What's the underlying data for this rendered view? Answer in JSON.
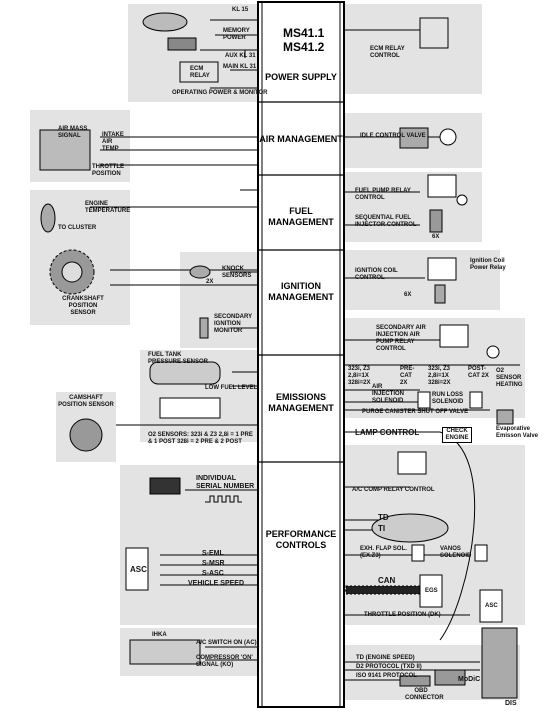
{
  "ecm": {
    "title_line1": "MS41.1",
    "title_line2": "MS41.2"
  },
  "sections": {
    "power_supply": "POWER SUPPLY",
    "air_management": "AIR MANAGEMENT",
    "fuel_management": "FUEL MANAGEMENT",
    "ignition_management": "IGNITION MANAGEMENT",
    "emissions_management": "EMISSIONS MANAGEMENT",
    "performance_controls": "PERFORMANCE CONTROLS"
  },
  "power": {
    "kl15": "KL 15",
    "memory_power": "MEMORY POWER",
    "ecm_relay": "ECM RELAY",
    "aux_kl31": "AUX KL 31",
    "main_kl31": "MAIN KL 31",
    "operating_power": "OPERATING POWER & MONITOR",
    "ecm_relay_control": "ECM RELAY CONTROL"
  },
  "air": {
    "air_mass_signal": "AIR MASS SIGNAL",
    "intake_air_temp": "INTAKE AIR TEMP",
    "throttle_position": "THROTTLE POSITION",
    "idle_control_valve": "IDLE CONTROL VALVE"
  },
  "fuel": {
    "engine_temperature": "ENGINE TEMPERATURE",
    "to_cluster": "TO CLUSTER",
    "fuel_pump_relay_control": "FUEL PUMP RELAY CONTROL",
    "sequential_fuel_injector_control": "SEQUENTIAL FUEL INJECTOR CONTROL",
    "injector_count": "6X"
  },
  "ignition": {
    "crankshaft_position_sensor": "CRANKSHAFT POSITION SENSOR",
    "knock_sensors": "KNOCK SENSORS",
    "knock_count": "2X",
    "secondary_ignition_monitor": "SECONDARY IGNITION MONITOR",
    "ignition_coil_control": "IGNITION COIL CONTROL",
    "coil_count": "6X",
    "ignition_coil_power_relay": "Ignition Coil Power Relay"
  },
  "emissions": {
    "secondary_air_relay_control": "SECONDARY AIR INJECTION AIR PUMP RELAY CONTROL",
    "fuel_tank_pressure_sensor": "FUEL TANK PRESSURE SENSOR",
    "low_fuel_level": "LOW FUEL LEVEL",
    "camshaft_position_sensor": "CAMSHAFT POSITION SENSOR",
    "pre_cat_left_spec": "323i, Z3 2,8i=1X 328i=2X",
    "pre_cat_left": "PRE-CAT 2X",
    "pre_cat_right_spec": "323i, Z3 2,8i=1X 328i=2X",
    "post_cat": "POST-CAT 2X",
    "o2_sensor_heating": "O2 SENSOR HEATING",
    "air_injection_solenoid": "AIR INJECTION SOLENOID",
    "run_loss_solenoid": "RUN LOSS SOLENOID",
    "purge_canister_valve": "PURGE CANISTER SHUT OFF VALVE",
    "evaporative_emission_valve": "Evaporative Emisson Valve",
    "o2_sensors_note": "O2 SENSORS: 323i & Z3 2,8i = 1 PRE & 1 POST 328i = 2 PRE & 2 POST",
    "lamp_control": "LAMP CONTROL",
    "check_engine": "CHECK ENGINE"
  },
  "performance": {
    "individual_serial_number": "INDIVIDUAL SERIAL NUMBER",
    "ac_comp_relay_control": "A/C COMP RELAY CONTROL",
    "td": "TD",
    "ti": "TI",
    "exh_flap": "EXH. FLAP SOL. (EX.Z3)",
    "vanos_solenoid": "VANOS SOLENOID",
    "s_eml": "S-EML",
    "s_msr": "S-MSR",
    "s_asc": "S-ASC",
    "vehicle_speed": "VEHICLE SPEED",
    "asc_label": "ASC",
    "can": "CAN",
    "egs": "EGS",
    "asc_box": "ASC",
    "throttle_position_dk": "THROTTLE POSITION (DK)",
    "ihka": "IHKA",
    "ac_switch_on": "A/C SWITCH ON (AC)",
    "compressor_on": "COMPRESSOR 'ON' SIGNAL (KO)",
    "td_engine_speed": "TD (ENGINE SPEED)",
    "d2_protocol": "D2 PROTOCOL (TXD II)",
    "iso_9141": "ISO 9141 PROTOCOL",
    "obd_connector": "OBD CONNECTOR",
    "modic": "MoDiC",
    "dis": "DIS"
  },
  "colors": {
    "panel": "#e3e3e3",
    "line": "#000000",
    "ecm_fill": "#ffffff"
  }
}
